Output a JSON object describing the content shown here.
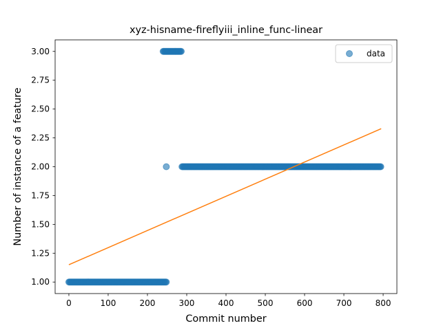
{
  "chart_data": {
    "type": "scatter",
    "title": "xyz-hisname-fireflyiii_inline_func-linear",
    "xlabel": "Commit number",
    "ylabel": "Number of instance of a feature",
    "xlim": [
      -35,
      835
    ],
    "ylim": [
      0.9,
      3.1
    ],
    "xticks": [
      0,
      100,
      200,
      300,
      400,
      500,
      600,
      700,
      800
    ],
    "yticks": [
      1.0,
      1.25,
      1.5,
      1.75,
      2.0,
      2.25,
      2.5,
      2.75,
      3.0
    ],
    "xtick_labels": [
      "0",
      "100",
      "200",
      "300",
      "400",
      "500",
      "600",
      "700",
      "800"
    ],
    "ytick_labels": [
      "1.00",
      "1.25",
      "1.50",
      "1.75",
      "2.00",
      "2.25",
      "2.50",
      "2.75",
      "3.00"
    ],
    "grid": false,
    "legend_position": "top-right",
    "series": [
      {
        "name": "data",
        "kind": "scatter",
        "color": "#1f77b4",
        "alpha": 0.6,
        "segments": [
          {
            "x_start": 0,
            "x_end": 248,
            "y": 1
          },
          {
            "x_start": 240,
            "x_end": 287,
            "y": 3
          },
          {
            "x_start": 248,
            "x_end": 248,
            "y": 2
          },
          {
            "x_start": 288,
            "x_end": 795,
            "y": 2
          }
        ]
      },
      {
        "name": "",
        "kind": "line",
        "color": "#ff7f0e",
        "points": [
          [
            0,
            1.15
          ],
          [
            795,
            2.33
          ]
        ]
      }
    ]
  }
}
